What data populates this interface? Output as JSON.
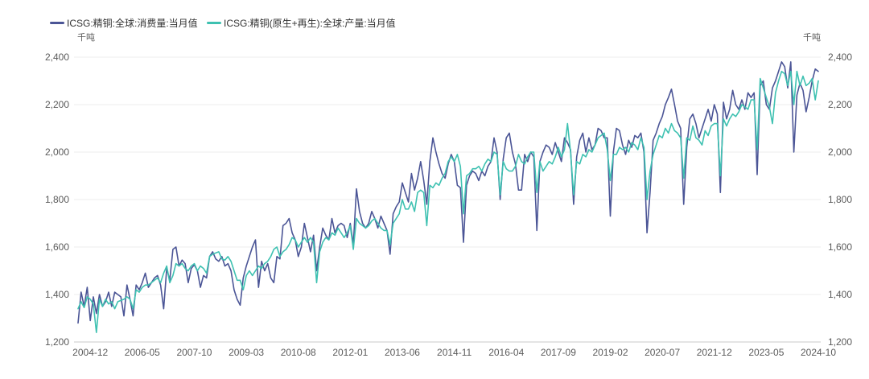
{
  "chart_data": {
    "type": "line",
    "start": {
      "year": 2004,
      "month": 8
    },
    "x_ticks": [
      "2004-12",
      "2006-05",
      "2007-10",
      "2009-03",
      "2010-08",
      "2012-01",
      "2013-06",
      "2014-11",
      "2016-04",
      "2017-09",
      "2019-02",
      "2020-07",
      "2021-12",
      "2023-05",
      "2024-10"
    ],
    "y_left": {
      "unit": "千吨",
      "min": 1200,
      "max": 2400,
      "ticks": [
        "1,200",
        "1,400",
        "1,600",
        "1,800",
        "2,000",
        "2,200",
        "2,400"
      ]
    },
    "y_right": {
      "unit": "千吨",
      "min": 1200,
      "max": 2400,
      "ticks": [
        "1,200",
        "1,400",
        "1,600",
        "1,800",
        "2,000",
        "2,200",
        "2,400"
      ]
    },
    "grid": true,
    "series": [
      {
        "name": "ICSG:精铜:全球:消费量:当月值",
        "color": "#4b5596",
        "values": [
          1280,
          1410,
          1350,
          1430,
          1290,
          1390,
          1320,
          1400,
          1350,
          1370,
          1410,
          1350,
          1410,
          1400,
          1390,
          1310,
          1440,
          1380,
          1310,
          1440,
          1420,
          1450,
          1490,
          1430,
          1450,
          1470,
          1480,
          1440,
          1340,
          1510,
          1460,
          1590,
          1600,
          1520,
          1545,
          1530,
          1450,
          1510,
          1525,
          1500,
          1430,
          1480,
          1470,
          1560,
          1580,
          1550,
          1540,
          1560,
          1520,
          1530,
          1500,
          1420,
          1380,
          1355,
          1470,
          1520,
          1560,
          1600,
          1630,
          1430,
          1540,
          1500,
          1530,
          1470,
          1450,
          1560,
          1550,
          1690,
          1700,
          1720,
          1660,
          1630,
          1560,
          1600,
          1700,
          1640,
          1580,
          1650,
          1500,
          1600,
          1680,
          1650,
          1630,
          1720,
          1660,
          1690,
          1700,
          1690,
          1640,
          1700,
          1610,
          1845,
          1750,
          1700,
          1680,
          1700,
          1750,
          1720,
          1680,
          1730,
          1700,
          1670,
          1570,
          1740,
          1770,
          1790,
          1870,
          1830,
          1790,
          1910,
          1840,
          1890,
          1960,
          1880,
          1780,
          1960,
          2060,
          2000,
          1950,
          1910,
          1890,
          1950,
          1990,
          1960,
          1860,
          1850,
          1620,
          1860,
          1900,
          1920,
          1910,
          1880,
          1920,
          1900,
          1940,
          1960,
          2060,
          2000,
          1800,
          1970,
          2060,
          2080,
          2000,
          1950,
          1840,
          1840,
          1990,
          1960,
          2000,
          1980,
          1670,
          1960,
          2000,
          2030,
          2020,
          1990,
          2040,
          2000,
          1960,
          2060,
          2040,
          2010,
          1780,
          1980,
          2050,
          2080,
          2000,
          2060,
          2010,
          2030,
          2100,
          2090,
          2060,
          2060,
          1730,
          2000,
          2100,
          2090,
          2030,
          1990,
          2050,
          2020,
          2070,
          2060,
          2080,
          2000,
          1660,
          1830,
          2050,
          2080,
          2120,
          2150,
          2200,
          2230,
          2265,
          2200,
          2130,
          2100,
          1780,
          2020,
          2140,
          2160,
          2120,
          2060,
          2100,
          2140,
          2180,
          2130,
          2200,
          2160,
          1830,
          2210,
          2140,
          2180,
          2260,
          2200,
          2180,
          2220,
          2180,
          2250,
          2230,
          2250,
          1905,
          2280,
          2300,
          2200,
          2180,
          2270,
          2300,
          2340,
          2380,
          2360,
          2270,
          2380,
          2000,
          2240,
          2290,
          2260,
          2170,
          2230,
          2300,
          2350,
          2340
        ]
      },
      {
        "name": "ICSG:精铜(原生+再生):全球:产量:当月值",
        "color": "#3ec1b1",
        "values": [
          1340,
          1370,
          1345,
          1390,
          1380,
          1360,
          1240,
          1380,
          1350,
          1380,
          1360,
          1370,
          1340,
          1370,
          1375,
          1380,
          1390,
          1380,
          1340,
          1420,
          1410,
          1430,
          1440,
          1440,
          1450,
          1460,
          1470,
          1450,
          1490,
          1520,
          1450,
          1480,
          1530,
          1520,
          1530,
          1510,
          1500,
          1520,
          1530,
          1500,
          1520,
          1510,
          1490,
          1560,
          1570,
          1575,
          1580,
          1550,
          1545,
          1560,
          1540,
          1500,
          1460,
          1460,
          1420,
          1480,
          1500,
          1480,
          1500,
          1520,
          1510,
          1530,
          1540,
          1560,
          1590,
          1600,
          1560,
          1580,
          1590,
          1610,
          1640,
          1630,
          1600,
          1620,
          1640,
          1620,
          1640,
          1620,
          1450,
          1580,
          1620,
          1640,
          1630,
          1660,
          1650,
          1680,
          1660,
          1640,
          1660,
          1690,
          1590,
          1720,
          1700,
          1690,
          1680,
          1690,
          1710,
          1720,
          1700,
          1680,
          1670,
          1670,
          1610,
          1700,
          1720,
          1740,
          1800,
          1760,
          1760,
          1790,
          1750,
          1830,
          1840,
          1830,
          1690,
          1860,
          1850,
          1870,
          1860,
          1890,
          1910,
          1960,
          1980,
          1960,
          1990,
          1940,
          1740,
          1900,
          1910,
          1930,
          1930,
          1940,
          1920,
          1950,
          1970,
          1960,
          2000,
          1990,
          1820,
          1960,
          1930,
          1920,
          1920,
          1940,
          1990,
          1960,
          1950,
          1980,
          2000,
          2000,
          1830,
          1960,
          1920,
          1940,
          1960,
          1950,
          1980,
          2020,
          1980,
          2010,
          2120,
          2000,
          1820,
          1960,
          1950,
          1990,
          1980,
          2010,
          2000,
          2030,
          2060,
          2070,
          2080,
          2010,
          1880,
          1990,
          1990,
          2020,
          2010,
          2020,
          2000,
          2040,
          2030,
          2010,
          2060,
          2020,
          1800,
          1920,
          1990,
          2030,
          2070,
          2060,
          2100,
          2080,
          2120,
          2090,
          2080,
          2060,
          1890,
          2060,
          2050,
          2110,
          2060,
          2050,
          2030,
          2090,
          2070,
          2110,
          2120,
          2120,
          1900,
          2140,
          2110,
          2140,
          2160,
          2150,
          2170,
          2200,
          2190,
          2180,
          2220,
          2220,
          2010,
          2310,
          2270,
          2230,
          2190,
          2120,
          2250,
          2300,
          2340,
          2330,
          2280,
          2340,
          2200,
          2340,
          2280,
          2320,
          2280,
          2290,
          2310,
          2220,
          2300
        ]
      }
    ]
  }
}
